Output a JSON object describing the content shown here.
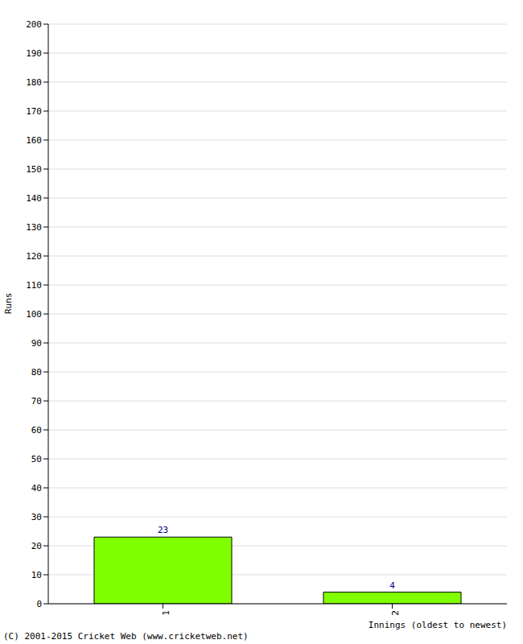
{
  "chart_data": {
    "type": "bar",
    "categories": [
      "1",
      "2"
    ],
    "values": [
      23,
      4
    ],
    "color": "#80ff00",
    "ylim": [
      0,
      200
    ],
    "yticks": [
      0,
      10,
      20,
      30,
      40,
      50,
      60,
      70,
      80,
      90,
      100,
      110,
      120,
      130,
      140,
      150,
      160,
      170,
      180,
      190,
      200
    ],
    "grid": true,
    "data_labels": true,
    "y_label": "Runs",
    "x_label": "Innings (oldest to newest)",
    "footer": "(C) 2001-2015 Cricket Web (www.cricketweb.net)"
  }
}
